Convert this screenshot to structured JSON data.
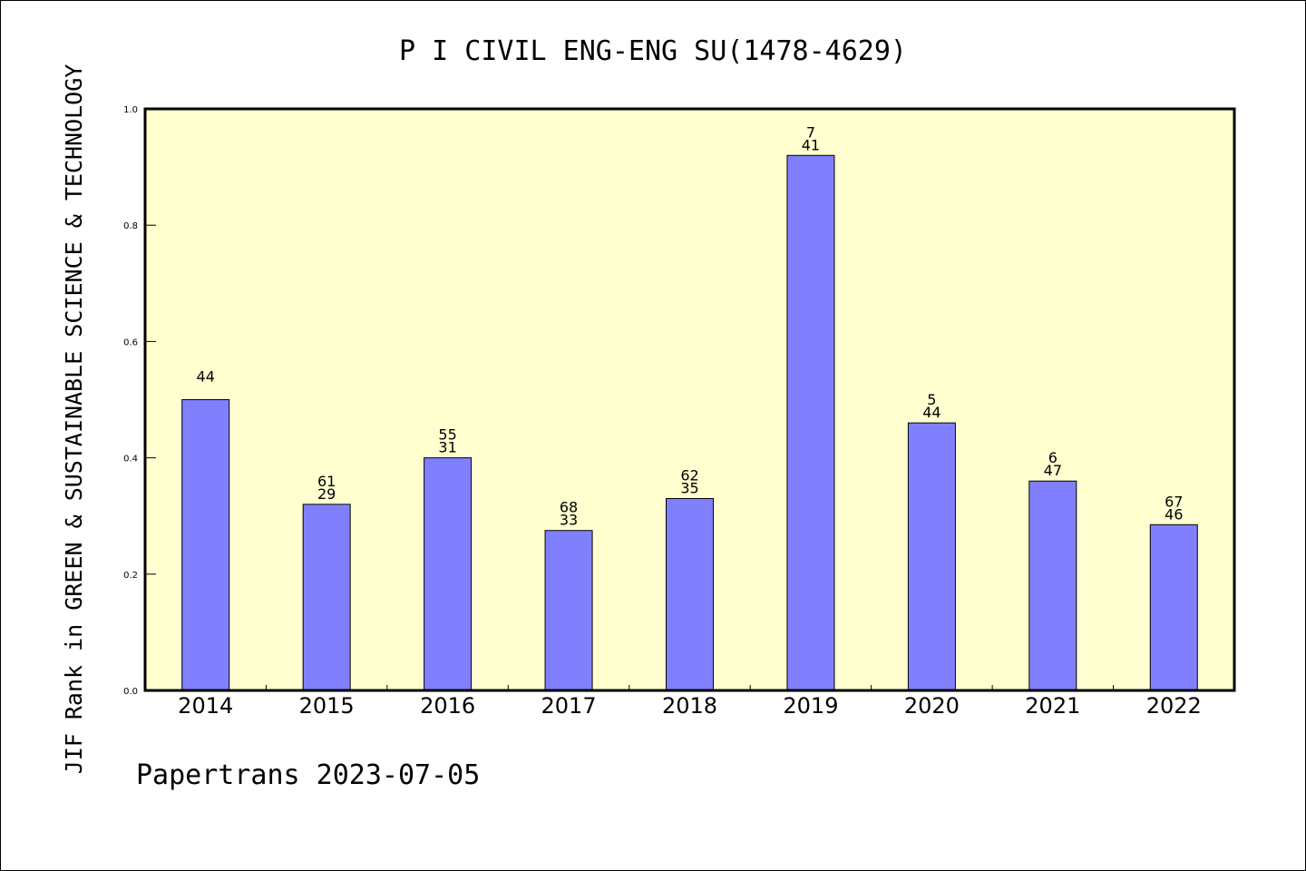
{
  "chart_data": {
    "type": "bar",
    "title": "P I CIVIL ENG-ENG SU(1478-4629)",
    "xlabel": "",
    "ylabel": "JIF Rank in GREEN & SUSTAINABLE SCIENCE & TECHNOLOGY",
    "categories": [
      "2014",
      "2015",
      "2016",
      "2017",
      "2018",
      "2019",
      "2020",
      "2021",
      "2022"
    ],
    "values": [
      0.5,
      0.32,
      0.4,
      0.275,
      0.33,
      0.92,
      0.46,
      0.36,
      0.285
    ],
    "bar_labels_top": [
      "",
      "61",
      "55",
      "68",
      "62",
      "7",
      "5",
      "6",
      "67"
    ],
    "bar_labels_bottom": [
      "44",
      "29",
      "31",
      "33",
      "35",
      "41",
      "44",
      "47",
      "46"
    ],
    "ylim": [
      0,
      1.0
    ],
    "yticks": [
      "0.0",
      "0.2",
      "0.4",
      "0.6",
      "0.8",
      "1.0"
    ],
    "grid": false,
    "colors": {
      "bar_fill": "#8080ff",
      "plot_background": "#ffffd0",
      "axis": "#000000"
    }
  },
  "footer": {
    "text": "Papertrans 2023-07-05"
  }
}
